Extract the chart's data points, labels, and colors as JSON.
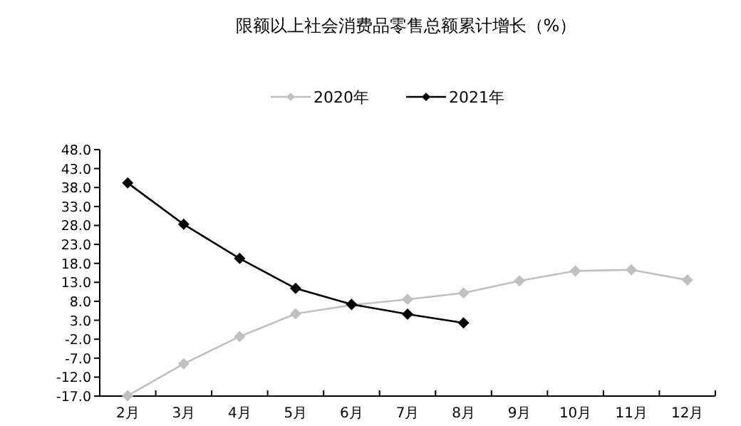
{
  "chart_data": {
    "type": "line",
    "title": "限额以上社会消费品零售总额累计增长（%）",
    "categories": [
      "2月",
      "3月",
      "4月",
      "5月",
      "6月",
      "7月",
      "8月",
      "9月",
      "10月",
      "11月",
      "12月"
    ],
    "series": [
      {
        "name": "2020年",
        "color": "#c0c0c0",
        "values": [
          -16.9,
          -8.5,
          -1.3,
          4.7,
          7.0,
          8.5,
          10.2,
          13.4,
          16.0,
          16.3,
          13.6
        ]
      },
      {
        "name": "2021年",
        "color": "#000000",
        "values": [
          39.2,
          28.3,
          19.3,
          11.4,
          7.2,
          4.6,
          2.3,
          null,
          null,
          null,
          null
        ]
      }
    ],
    "ylim": [
      -17,
      48
    ],
    "yticks": [
      {
        "value": -17,
        "label": "-17.0"
      },
      {
        "value": -12,
        "label": "-12.0"
      },
      {
        "value": -7,
        "label": "-7.0"
      },
      {
        "value": -2,
        "label": "-2.0"
      },
      {
        "value": 3,
        "label": "3.0"
      },
      {
        "value": 8,
        "label": "8.0"
      },
      {
        "value": 13,
        "label": "13.0"
      },
      {
        "value": 18,
        "label": "18.0"
      },
      {
        "value": 23,
        "label": "23.0"
      },
      {
        "value": 28,
        "label": "28.0"
      },
      {
        "value": 33,
        "label": "33.0"
      },
      {
        "value": 38,
        "label": "38.0"
      },
      {
        "value": 43,
        "label": "43.0"
      },
      {
        "value": 48,
        "label": "48.0"
      }
    ],
    "marker": "diamond",
    "line_style": "solid",
    "grid": false,
    "legend": "top"
  }
}
